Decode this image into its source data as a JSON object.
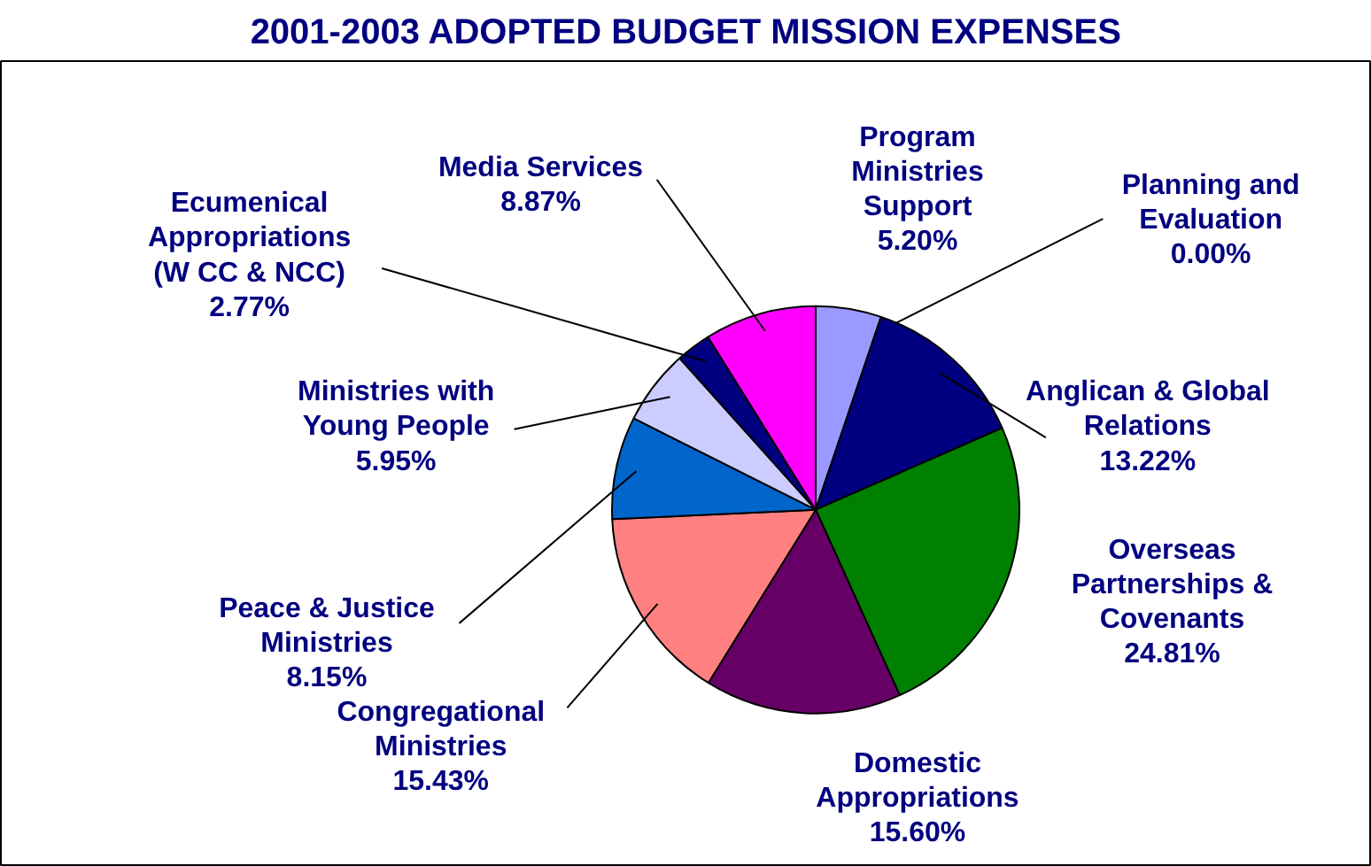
{
  "chart_data": {
    "type": "pie",
    "title": "2001-2003 ADOPTED BUDGET MISSION EXPENSES",
    "categories": [
      "Program Ministries Support",
      "Planning and Evaluation",
      "Anglican & Global Relations",
      "Overseas Partnerships & Covenants",
      "Domestic Appropriations",
      "Congregational Ministries",
      "Peace & Justice Ministries",
      "Ministries with Young People",
      "Ecumenical Appropriations (W CC & NCC)",
      "Media Services"
    ],
    "values": [
      5.2,
      0.0,
      13.22,
      24.81,
      15.6,
      15.43,
      8.15,
      5.95,
      2.77,
      8.87
    ],
    "value_labels": [
      "5.20%",
      "0.00%",
      "13.22%",
      "24.81%",
      "15.60%",
      "15.43%",
      "8.15%",
      "5.95%",
      "2.77%",
      "8.87%"
    ],
    "colors": [
      "#9999ff",
      "#ffffff",
      "#000080",
      "#008000",
      "#660066",
      "#ff8080",
      "#0066cc",
      "#ccccff",
      "#000080",
      "#ff00ff"
    ]
  }
}
